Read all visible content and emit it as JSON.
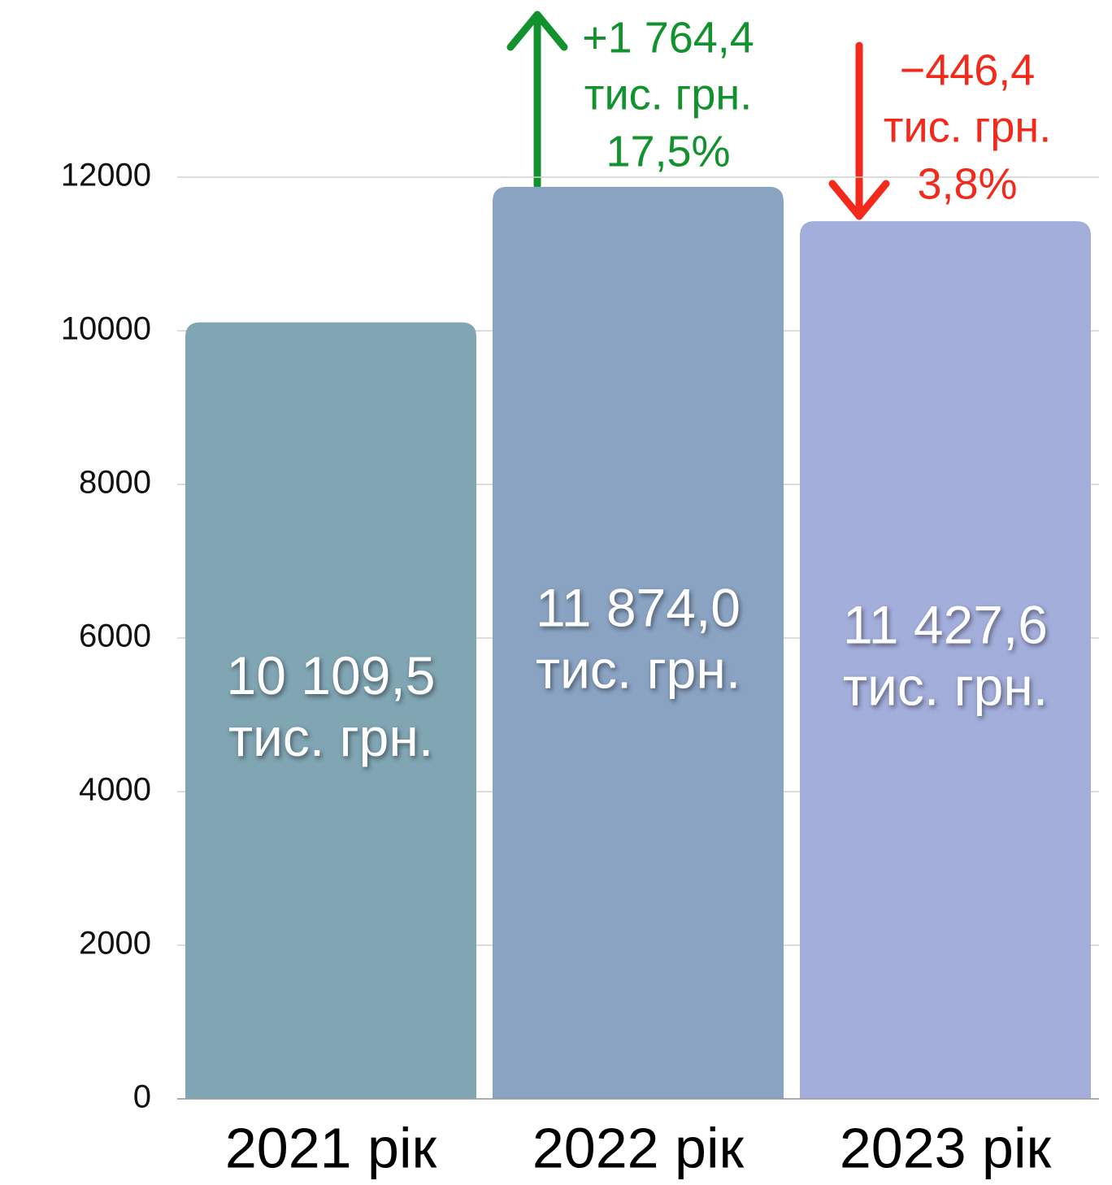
{
  "chart_data": {
    "type": "bar",
    "categories": [
      "2021 рік",
      "2022 рік",
      "2023 рік"
    ],
    "values": [
      10109.5,
      11874.0,
      11427.6
    ],
    "value_labels": [
      "10 109,5",
      "11 874,0",
      "11 427,6"
    ],
    "value_unit": "тис. грн.",
    "colors": [
      "#80a5b3",
      "#8aa3c2",
      "#a3aedb"
    ],
    "ylim": [
      0,
      12000
    ],
    "yticks": [
      0,
      2000,
      4000,
      6000,
      8000,
      10000,
      12000
    ],
    "grid": true,
    "annotations": [
      {
        "lines": [
          "+1 764,4",
          "тис. грн.",
          "17,5%"
        ],
        "color": "#12922e"
      },
      {
        "lines": [
          "−446,4",
          "тис. грн.",
          "3,8%"
        ],
        "color": "#f32a1b"
      }
    ]
  }
}
